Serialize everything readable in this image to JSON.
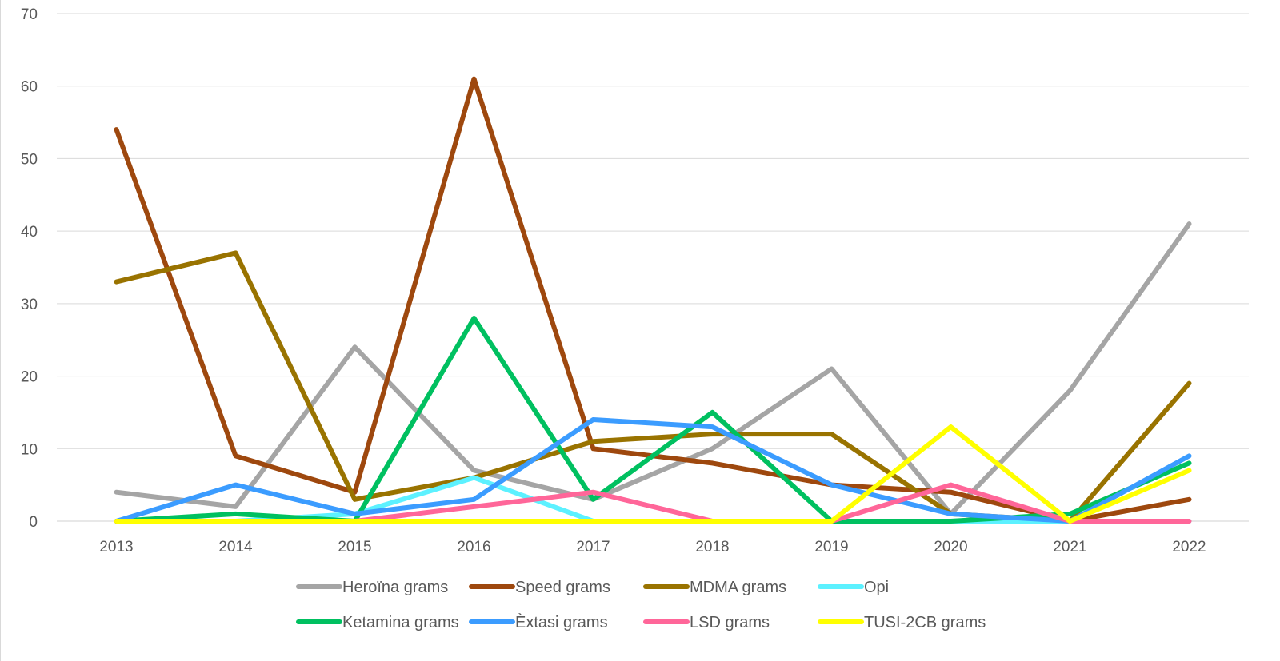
{
  "chart_data": {
    "type": "line",
    "title": "",
    "xlabel": "",
    "ylabel": "",
    "categories": [
      "2013",
      "2014",
      "2015",
      "2016",
      "2017",
      "2018",
      "2019",
      "2020",
      "2021",
      "2022"
    ],
    "ylim": [
      0,
      70
    ],
    "yticks": [
      0,
      10,
      20,
      30,
      40,
      50,
      60,
      70
    ],
    "grid": "horizontal",
    "legend_position": "bottom",
    "series": [
      {
        "name": "Heroïna grams",
        "color": "#a5a5a5",
        "values": [
          4,
          2,
          24,
          7,
          3,
          10,
          21,
          1,
          18,
          41
        ]
      },
      {
        "name": "Speed grams",
        "color": "#9e480e",
        "values": [
          54,
          9,
          4,
          61,
          10,
          8,
          5,
          4,
          0,
          3
        ]
      },
      {
        "name": "MDMA grams",
        "color": "#997300",
        "values": [
          33,
          37,
          3,
          6,
          11,
          12,
          12,
          1,
          0,
          19
        ]
      },
      {
        "name": "Opi",
        "color": "#5cf1ff",
        "values": [
          0,
          0,
          1,
          6,
          0,
          0,
          0,
          0,
          0,
          0
        ]
      },
      {
        "name": "Ketamina grams",
        "color": "#00c060",
        "values": [
          0,
          1,
          0,
          28,
          3,
          15,
          0,
          0,
          1,
          8
        ]
      },
      {
        "name": "Èxtasi grams",
        "color": "#3b9cff",
        "values": [
          0,
          5,
          1,
          3,
          14,
          13,
          5,
          1,
          0,
          9
        ]
      },
      {
        "name": "LSD grams",
        "color": "#ff6699",
        "values": [
          0,
          0,
          0,
          2,
          4,
          0,
          0,
          5,
          0,
          0
        ]
      },
      {
        "name": "TUSI-2CB grams",
        "color": "#ffff00",
        "values": [
          0,
          0,
          0,
          0,
          0,
          0,
          0,
          13,
          0,
          7
        ]
      }
    ]
  }
}
